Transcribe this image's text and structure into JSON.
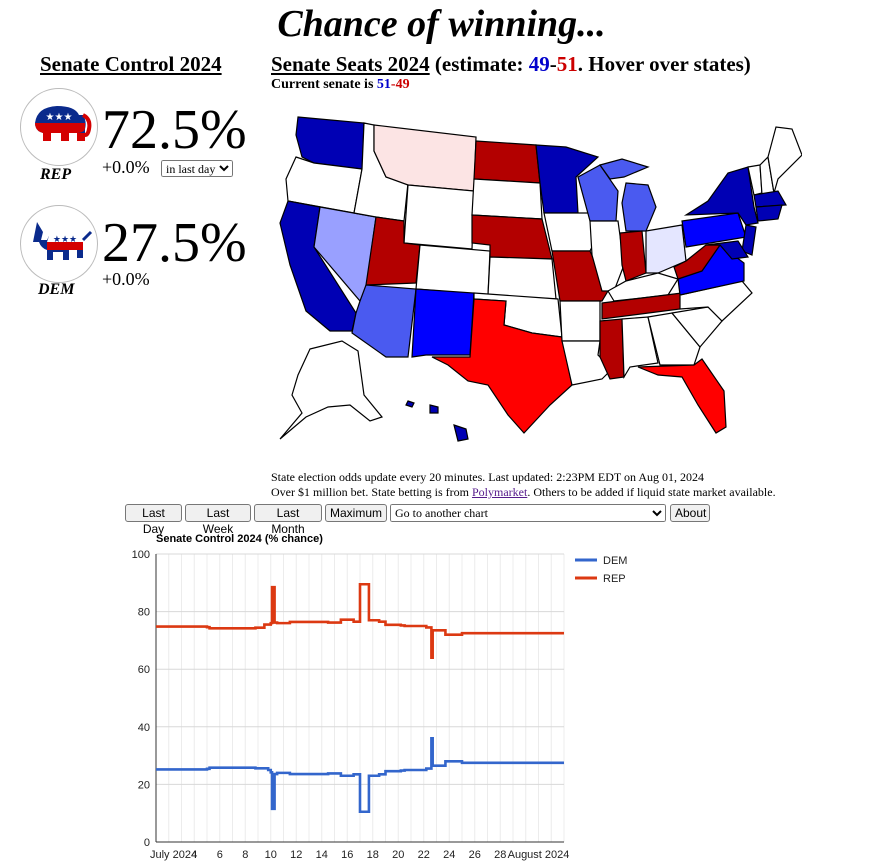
{
  "header": {
    "title": "Chance of winning..."
  },
  "senate_control": {
    "heading": "Senate Control 2024",
    "rep": {
      "label": "REP",
      "pct": "72.5%",
      "change": "+0.0%"
    },
    "dem": {
      "label": "DEM",
      "pct": "27.5%",
      "change": "+0.0%"
    },
    "period_selected": "in last day"
  },
  "senate_seats": {
    "heading": "Senate Seats 2024",
    "estimate_prefix": " (estimate: ",
    "estimate_dem": "49",
    "estimate_sep": "-",
    "estimate_rep": "51",
    "estimate_suffix": ". Hover over states)",
    "current_prefix": "Current senate is ",
    "current_dem": "51",
    "current_sep": "-",
    "current_rep": "49"
  },
  "map_colors": {
    "white": "#ffffff",
    "dark_blue": "#0000b4",
    "blue": "#0000ff",
    "mid_blue": "#4a5af0",
    "light_blue": "#99a0ff",
    "pale_blue": "#e4e6ff",
    "dark_red": "#b30000",
    "red": "#ff0000",
    "pale_red": "#fce4e4"
  },
  "info": {
    "line1": "State election odds update every 20 minutes. Last updated: 2:23PM EDT on Aug 01, 2024",
    "line2_prefix": "Over $1 million bet. State betting is from ",
    "line2_link": "Polymarket",
    "line2_suffix": ". Others to be added if liquid state market available."
  },
  "controls": {
    "last_day": "Last Day",
    "last_week": "Last Week",
    "last_month": "Last Month",
    "maximum": "Maximum",
    "chart_select": "Go to another chart",
    "about": "About"
  },
  "chart_data": {
    "type": "line",
    "title": "Senate Control 2024 (% chance)",
    "ylim": [
      0,
      100
    ],
    "y_ticks": [
      0,
      20,
      40,
      60,
      80,
      100
    ],
    "x_range": [
      0,
      32
    ],
    "x_tick_labels": [
      {
        "x": 0,
        "label": "July 2024"
      },
      {
        "x": 3,
        "label": "4"
      },
      {
        "x": 5,
        "label": "6"
      },
      {
        "x": 7,
        "label": "8"
      },
      {
        "x": 9,
        "label": "10"
      },
      {
        "x": 11,
        "label": "12"
      },
      {
        "x": 13,
        "label": "14"
      },
      {
        "x": 15,
        "label": "16"
      },
      {
        "x": 17,
        "label": "18"
      },
      {
        "x": 19,
        "label": "20"
      },
      {
        "x": 21,
        "label": "22"
      },
      {
        "x": 23,
        "label": "24"
      },
      {
        "x": 25,
        "label": "26"
      },
      {
        "x": 27,
        "label": "28"
      },
      {
        "x": 30,
        "label": "August 2024"
      }
    ],
    "legend_position": "right",
    "grid": true,
    "series": [
      {
        "name": "DEM",
        "color": "#3366cc",
        "points": [
          [
            0,
            25.2
          ],
          [
            4,
            25.4
          ],
          [
            4.2,
            25.8
          ],
          [
            7.8,
            25.6
          ],
          [
            8.8,
            25.0
          ],
          [
            9.0,
            24.2
          ],
          [
            9.1,
            11.5
          ],
          [
            9.3,
            23.6
          ],
          [
            9.5,
            24.0
          ],
          [
            10.5,
            23.6
          ],
          [
            13.5,
            23.8
          ],
          [
            14.5,
            23.0
          ],
          [
            15.5,
            23.5
          ],
          [
            16.0,
            10.5
          ],
          [
            16.6,
            10.5
          ],
          [
            16.7,
            23.0
          ],
          [
            17.5,
            23.5
          ],
          [
            18.0,
            24.6
          ],
          [
            19.2,
            24.8
          ],
          [
            19.5,
            25.0
          ],
          [
            20.5,
            25.0
          ],
          [
            21.2,
            25.5
          ],
          [
            21.6,
            36.0
          ],
          [
            21.7,
            26.5
          ],
          [
            22.5,
            26.5
          ],
          [
            22.7,
            28.0
          ],
          [
            24,
            27.5
          ],
          [
            32,
            27.5
          ]
        ]
      },
      {
        "name": "REP",
        "color": "#dc3912",
        "points": [
          [
            0,
            74.8
          ],
          [
            4,
            74.6
          ],
          [
            4.2,
            74.2
          ],
          [
            7.8,
            74.4
          ],
          [
            8.5,
            75.5
          ],
          [
            9.0,
            76.0
          ],
          [
            9.1,
            88.5
          ],
          [
            9.3,
            76.2
          ],
          [
            9.5,
            76.0
          ],
          [
            10.5,
            76.4
          ],
          [
            13.5,
            76.2
          ],
          [
            14.5,
            77.2
          ],
          [
            15.5,
            76.5
          ],
          [
            16.0,
            89.5
          ],
          [
            16.6,
            89.5
          ],
          [
            16.7,
            77.0
          ],
          [
            17.5,
            76.5
          ],
          [
            18.0,
            75.4
          ],
          [
            19.2,
            75.2
          ],
          [
            19.5,
            75.0
          ],
          [
            20.5,
            75.0
          ],
          [
            21.2,
            74.5
          ],
          [
            21.6,
            64.0
          ],
          [
            21.7,
            73.5
          ],
          [
            22.5,
            73.5
          ],
          [
            22.7,
            72.0
          ],
          [
            24,
            72.5
          ],
          [
            32,
            72.5
          ]
        ]
      }
    ]
  }
}
